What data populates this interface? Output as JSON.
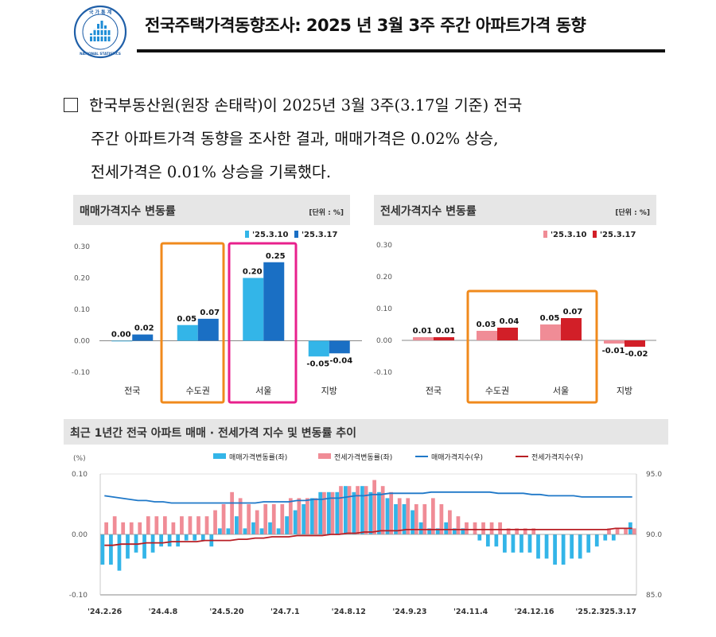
{
  "header": {
    "title": "전국주택가격동향조사: 2025 년 3월 3주 주간 아파트가격 동향",
    "logo_top_text": "국 가 통 계",
    "logo_bottom_text": "NATIONAL STATISTICS"
  },
  "summary": {
    "line1": "한국부동산원(원장 손태락)이 2025년 3월 3주(3.17일 기준) 전국",
    "line2": "주간 아파트가격 동향을 조사한 결과, 매매가격은 0.02% 상승,",
    "line3": "전세가격은 0.01% 상승을 기록했다."
  },
  "colors": {
    "sale_prev": "#33b5e8",
    "sale_curr": "#1a6fc4",
    "jeonse_prev": "#f08c96",
    "jeonse_curr": "#d21f28",
    "highlight_orange": "#f08a1c",
    "highlight_pink": "#e8208c",
    "sale_index_line": "#1f78c8",
    "jeonse_index_line": "#b81e24",
    "panel_bar": "#e6e6e6"
  },
  "chart_data": [
    {
      "type": "bar",
      "title": "매매가격지수 변동률",
      "unit": "[단위 : %]",
      "categories": [
        "전국",
        "수도권",
        "서울",
        "지방"
      ],
      "series": [
        {
          "name": "'25.3.10",
          "values": [
            0.0,
            0.05,
            0.2,
            -0.05
          ],
          "labels": [
            "0.00",
            "0.05",
            "0.20",
            "-0.05"
          ]
        },
        {
          "name": "'25.3.17",
          "values": [
            0.02,
            0.07,
            0.25,
            -0.04
          ],
          "labels": [
            "0.02",
            "0.07",
            "0.25",
            "-0.04"
          ]
        }
      ],
      "ylim": [
        -0.1,
        0.3
      ],
      "yticks": [
        "-0.10",
        "0.00",
        "0.10",
        "0.20",
        "0.30"
      ],
      "legend": "top-right",
      "highlighted_categories": [
        "수도권",
        "서울"
      ]
    },
    {
      "type": "bar",
      "title": "전세가격지수 변동률",
      "unit": "[단위 : %]",
      "categories": [
        "전국",
        "수도권",
        "서울",
        "지방"
      ],
      "series": [
        {
          "name": "'25.3.10",
          "values": [
            0.01,
            0.03,
            0.05,
            -0.01
          ],
          "labels": [
            "0.01",
            "0.03",
            "0.05",
            "-0.01"
          ]
        },
        {
          "name": "'25.3.17",
          "values": [
            0.01,
            0.04,
            0.07,
            -0.02
          ],
          "labels": [
            "0.01",
            "0.04",
            "0.07",
            "-0.02"
          ]
        }
      ],
      "ylim": [
        -0.1,
        0.3
      ],
      "yticks": [
        "-0.10",
        "0.00",
        "0.10",
        "0.20",
        "0.30"
      ],
      "legend": "top-right",
      "highlighted_categories": [
        "수도권",
        "서울"
      ]
    },
    {
      "type": "bar",
      "title": "최근 1년간 전국 아파트 매매 · 전세가격 지수 및 변동률 추이",
      "left_axis_label": "(%)",
      "left_ylim": [
        -0.1,
        0.1
      ],
      "left_yticks": [
        "-0.10",
        "0.00",
        "0.10"
      ],
      "right_ylim": [
        85.0,
        95.0
      ],
      "right_yticks": [
        "85.0",
        "90.0",
        "95.0"
      ],
      "x_tick_labels": [
        "'24.2.26",
        "'24.4.8",
        "'24.5.20",
        "'24.7.1",
        "'24.8.12",
        "'24.9.23",
        "'24.11.4",
        "'24.12.16",
        "'25.2.3",
        "'25.3.17"
      ],
      "legend": "top",
      "series": [
        {
          "name": "매매가격변동률(좌)",
          "kind": "bar",
          "values": [
            -0.05,
            -0.05,
            -0.06,
            -0.04,
            -0.03,
            -0.04,
            -0.03,
            -0.02,
            -0.02,
            -0.02,
            -0.01,
            -0.01,
            -0.01,
            -0.02,
            0.01,
            0.01,
            0.03,
            0.01,
            0.02,
            0.01,
            0.02,
            0.01,
            0.03,
            0.04,
            0.05,
            0.06,
            0.07,
            0.07,
            0.07,
            0.08,
            0.07,
            0.08,
            0.07,
            0.07,
            0.06,
            0.05,
            0.05,
            0.04,
            0.02,
            0.01,
            0.01,
            0.02,
            0.01,
            0.01,
            0.0,
            -0.01,
            -0.02,
            -0.02,
            -0.03,
            -0.03,
            -0.03,
            -0.03,
            -0.04,
            -0.04,
            -0.05,
            -0.05,
            -0.04,
            -0.04,
            -0.03,
            -0.02,
            -0.01,
            -0.01,
            0.0,
            0.02
          ]
        },
        {
          "name": "전세가격변동률(좌)",
          "kind": "bar",
          "values": [
            0.02,
            0.03,
            0.02,
            0.02,
            0.02,
            0.03,
            0.03,
            0.03,
            0.02,
            0.03,
            0.03,
            0.03,
            0.03,
            0.04,
            0.05,
            0.07,
            0.06,
            0.05,
            0.04,
            0.05,
            0.05,
            0.05,
            0.06,
            0.06,
            0.06,
            0.06,
            0.07,
            0.07,
            0.08,
            0.08,
            0.08,
            0.08,
            0.09,
            0.08,
            0.07,
            0.06,
            0.06,
            0.05,
            0.05,
            0.06,
            0.05,
            0.04,
            0.03,
            0.02,
            0.02,
            0.02,
            0.02,
            0.02,
            0.01,
            0.01,
            0.01,
            0.01,
            0.0,
            0.0,
            0.0,
            0.0,
            0.0,
            0.0,
            0.0,
            0.0,
            0.01,
            0.01,
            0.01,
            0.01
          ]
        },
        {
          "name": "매매가격지수(우)",
          "kind": "line",
          "axis": "right",
          "values": [
            93.2,
            93.1,
            93.0,
            92.9,
            92.8,
            92.8,
            92.7,
            92.7,
            92.6,
            92.6,
            92.6,
            92.6,
            92.6,
            92.6,
            92.6,
            92.6,
            92.6,
            92.6,
            92.6,
            92.7,
            92.7,
            92.7,
            92.7,
            92.8,
            92.8,
            92.9,
            92.9,
            93.0,
            93.0,
            93.1,
            93.2,
            93.2,
            93.3,
            93.3,
            93.4,
            93.4,
            93.4,
            93.4,
            93.4,
            93.5,
            93.5,
            93.5,
            93.5,
            93.5,
            93.5,
            93.5,
            93.5,
            93.4,
            93.4,
            93.4,
            93.4,
            93.3,
            93.3,
            93.2,
            93.2,
            93.2,
            93.2,
            93.1,
            93.1,
            93.1,
            93.1,
            93.1,
            93.1,
            93.1
          ]
        },
        {
          "name": "전세가격지수(우)",
          "kind": "line",
          "axis": "right",
          "values": [
            89.1,
            89.1,
            89.2,
            89.2,
            89.2,
            89.3,
            89.3,
            89.3,
            89.4,
            89.4,
            89.4,
            89.4,
            89.5,
            89.5,
            89.5,
            89.5,
            89.6,
            89.6,
            89.7,
            89.7,
            89.8,
            89.8,
            89.8,
            89.9,
            89.9,
            89.9,
            89.9,
            90.0,
            90.0,
            90.1,
            90.1,
            90.2,
            90.2,
            90.3,
            90.3,
            90.3,
            90.4,
            90.4,
            90.4,
            90.4,
            90.4,
            90.4,
            90.4,
            90.4,
            90.4,
            90.4,
            90.4,
            90.4,
            90.4,
            90.4,
            90.4,
            90.4,
            90.4,
            90.4,
            90.4,
            90.4,
            90.4,
            90.4,
            90.4,
            90.4,
            90.4,
            90.5,
            90.5,
            90.5
          ]
        }
      ]
    }
  ]
}
